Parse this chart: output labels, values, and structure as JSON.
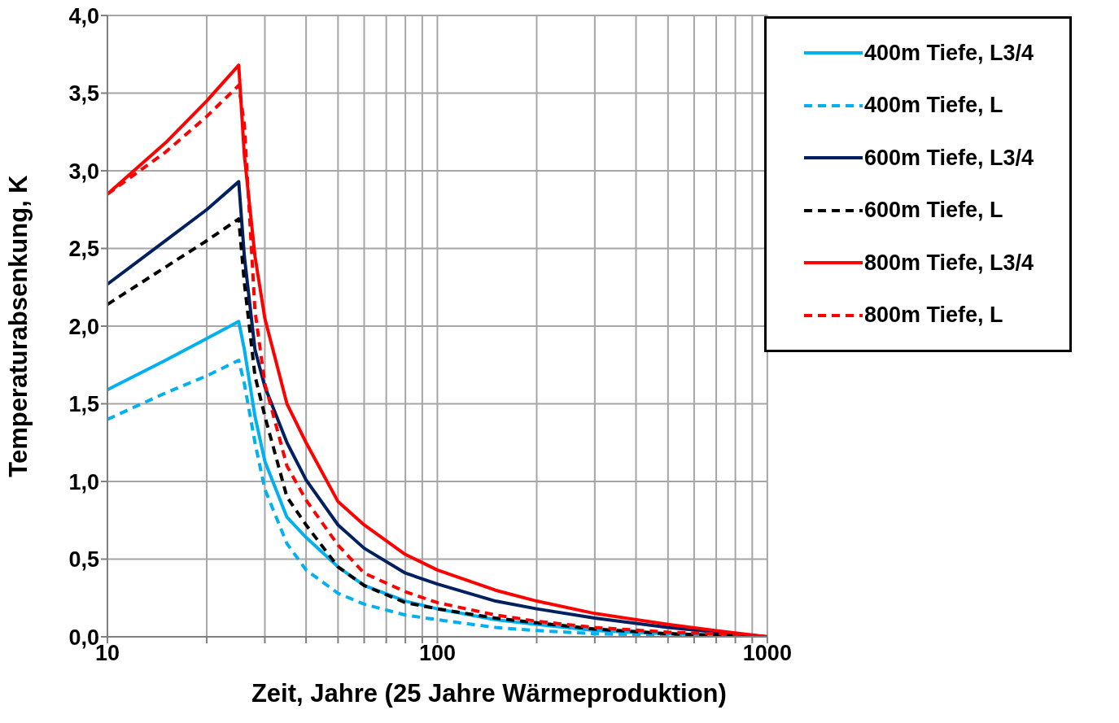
{
  "chart_data": {
    "type": "line",
    "xlabel": "Zeit, Jahre  (25 Jahre Wärmeproduktion)",
    "ylabel": "Temperaturabsenkung, K",
    "log": "x",
    "grid": true,
    "legend": "top right",
    "marker": "none",
    "x": [
      10,
      15,
      20,
      25,
      26,
      28,
      30,
      35,
      40,
      50,
      60,
      80,
      100,
      150,
      200,
      300,
      500,
      700,
      1000
    ],
    "xlim": [
      10,
      1000
    ],
    "xticks": [
      10,
      {
        "value": 20,
        "label": null
      },
      {
        "value": 30,
        "label": null
      },
      {
        "value": 40,
        "label": null
      },
      {
        "value": 50,
        "label": null
      },
      {
        "value": 60,
        "label": null
      },
      {
        "value": 70,
        "label": null
      },
      {
        "value": 80,
        "label": null
      },
      {
        "value": 90,
        "label": null
      },
      100,
      {
        "value": 200,
        "label": null
      },
      {
        "value": 300,
        "label": null
      },
      {
        "value": 400,
        "label": null
      },
      {
        "value": 500,
        "label": null
      },
      {
        "value": 600,
        "label": null
      },
      {
        "value": 700,
        "label": null
      },
      {
        "value": 800,
        "label": null
      },
      {
        "value": 900,
        "label": null
      },
      1000
    ],
    "ylim": [
      0,
      4
    ],
    "yticks": [
      {
        "value": 0,
        "label": "0,0"
      },
      {
        "value": 0.5,
        "label": "0,5"
      },
      {
        "value": 1,
        "label": "1,0"
      },
      {
        "value": 1.5,
        "label": "1,5"
      },
      {
        "value": 2,
        "label": "2,0"
      },
      {
        "value": 2.5,
        "label": "2,5"
      },
      {
        "value": 3,
        "label": "3,0"
      },
      {
        "value": 3.5,
        "label": "3,5"
      },
      {
        "value": 4,
        "label": "4,0"
      }
    ],
    "series": [
      {
        "name": "400m Tiefe, L3/4",
        "color": "#00b0f0",
        "line_style": "solid",
        "values": [
          1.59,
          1.78,
          1.92,
          2.03,
          1.85,
          1.42,
          1.13,
          0.77,
          0.64,
          0.45,
          0.33,
          0.23,
          0.18,
          0.11,
          0.08,
          0.04,
          0.02,
          0.01,
          0
        ]
      },
      {
        "name": "400m Tiefe, L",
        "color": "#00b0f0",
        "line_style": "dashed",
        "values": [
          1.4,
          1.57,
          1.68,
          1.78,
          1.63,
          1.25,
          0.95,
          0.6,
          0.43,
          0.28,
          0.21,
          0.14,
          0.11,
          0.06,
          0.04,
          0.02,
          0.01,
          0,
          0
        ]
      },
      {
        "name": "600m Tiefe, L3/4",
        "color": "#002060",
        "line_style": "solid",
        "values": [
          2.27,
          2.55,
          2.75,
          2.93,
          2.45,
          1.85,
          1.61,
          1.25,
          1.01,
          0.72,
          0.57,
          0.41,
          0.34,
          0.23,
          0.18,
          0.12,
          0.06,
          0.03,
          0
        ]
      },
      {
        "name": "600m Tiefe, L",
        "color": "#000000",
        "line_style": "dashed",
        "values": [
          2.14,
          2.38,
          2.55,
          2.69,
          2.28,
          1.68,
          1.42,
          0.9,
          0.72,
          0.45,
          0.33,
          0.22,
          0.18,
          0.12,
          0.09,
          0.05,
          0.02,
          0.01,
          0
        ]
      },
      {
        "name": "800m Tiefe, L3/4",
        "color": "#ff0000",
        "line_style": "solid",
        "values": [
          2.85,
          3.18,
          3.45,
          3.68,
          3.1,
          2.45,
          2.05,
          1.5,
          1.25,
          0.87,
          0.72,
          0.53,
          0.43,
          0.3,
          0.23,
          0.15,
          0.08,
          0.04,
          0
        ]
      },
      {
        "name": "800m Tiefe, L",
        "color": "#ff0000",
        "line_style": "dashed",
        "values": [
          2.85,
          3.12,
          3.35,
          3.55,
          3.3,
          2.1,
          1.63,
          1.1,
          0.88,
          0.59,
          0.41,
          0.29,
          0.22,
          0.14,
          0.1,
          0.06,
          0.03,
          0.02,
          0
        ]
      }
    ]
  }
}
